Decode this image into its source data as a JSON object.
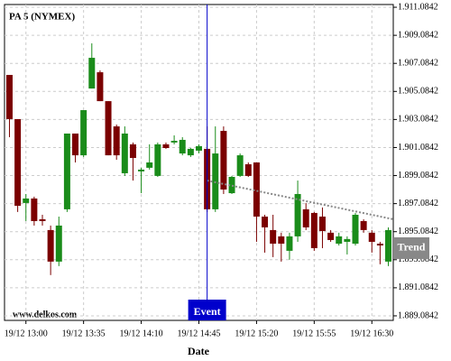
{
  "chart_data": {
    "type": "candlestick",
    "title": "PA 5 (NYMEX)",
    "x_label": "Date",
    "watermark": "www.delkos.com",
    "up_color": "#1a8c1a",
    "down_color": "#7b0000",
    "grid": true,
    "x": [
      "19/12 12:50",
      "19/12 12:55",
      "19/12 13:00",
      "19/12 13:05",
      "19/12 13:10",
      "19/12 13:15",
      "19/12 13:20",
      "19/12 13:25",
      "19/12 13:30",
      "19/12 13:35",
      "19/12 13:40",
      "19/12 13:45",
      "19/12 13:50",
      "19/12 13:55",
      "19/12 14:00",
      "19/12 14:05",
      "19/12 14:10",
      "19/12 14:15",
      "19/12 14:20",
      "19/12 14:25",
      "19/12 14:30",
      "19/12 14:35",
      "19/12 14:40",
      "19/12 14:45",
      "19/12 14:50",
      "19/12 14:55",
      "19/12 15:00",
      "19/12 15:05",
      "19/12 15:10",
      "19/12 15:15",
      "19/12 15:20",
      "19/12 15:25",
      "19/12 15:30",
      "19/12 15:35",
      "19/12 15:40",
      "19/12 15:45",
      "19/12 15:50",
      "19/12 15:55",
      "19/12 16:00",
      "19/12 16:05",
      "19/12 16:10",
      "19/12 16:15",
      "19/12 16:20",
      "19/12 16:25",
      "19/12 16:30",
      "19/12 16:35",
      "19/12 16:40"
    ],
    "open": [
      1906.26,
      1903.11,
      1897.13,
      1897.45,
      1895.97,
      1895.2,
      1892.95,
      1896.68,
      1902.08,
      1900.53,
      1905.29,
      1906.45,
      1904.39,
      1902.59,
      1899.25,
      1901.31,
      1899.38,
      1899.64,
      1899.06,
      1901.31,
      1901.44,
      1900.66,
      1900.53,
      1900.86,
      1900.99,
      1896.68,
      1902.27,
      1897.83,
      1899.06,
      1899.89,
      1900.02,
      1896.16,
      1895.2,
      1894.75,
      1893.72,
      1894.75,
      1896.68,
      1896.42,
      1896.16,
      1895.01,
      1894.23,
      1894.36,
      1894.23,
      1895.84,
      1895.01,
      1894.23,
      1892.95
    ],
    "close": [
      1903.11,
      1896.93,
      1897.45,
      1895.84,
      1895.84,
      1892.95,
      1895.52,
      1902.08,
      1900.53,
      1903.75,
      1907.48,
      1904.39,
      1900.53,
      1900.53,
      1902.08,
      1900.34,
      1899.51,
      1900.02,
      1901.31,
      1901.05,
      1901.56,
      1901.63,
      1900.99,
      1901.18,
      1896.68,
      1900.66,
      1898.09,
      1898.99,
      1900.53,
      1899.06,
      1896.16,
      1895.39,
      1894.23,
      1894.23,
      1894.75,
      1897.77,
      1895.39,
      1893.91,
      1895.13,
      1894.49,
      1894.75,
      1894.56,
      1896.29,
      1895.2,
      1894.36,
      1894.1,
      1895.2
    ],
    "high": [
      1906.26,
      1903.11,
      1897.77,
      1897.58,
      1896.29,
      1895.52,
      1896.16,
      1902.08,
      1902.08,
      1903.75,
      1908.51,
      1906.58,
      1904.39,
      1902.72,
      1902.59,
      1901.44,
      1899.64,
      1901.31,
      1901.44,
      1901.44,
      1901.95,
      1901.82,
      1901.05,
      1901.31,
      1902.59,
      1902.59,
      1902.59,
      1899.06,
      1900.66,
      1900.02,
      1900.02,
      1896.29,
      1896.29,
      1895.01,
      1895.01,
      1898.73,
      1897.13,
      1896.49,
      1896.81,
      1895.2,
      1895.01,
      1894.75,
      1896.42,
      1895.97,
      1895.2,
      1894.36,
      1895.39
    ],
    "low": [
      1901.82,
      1896.49,
      1895.84,
      1895.52,
      1895.52,
      1891.99,
      1892.63,
      1896.49,
      1900.02,
      1900.41,
      1905.29,
      1904.39,
      1900.53,
      1900.21,
      1899.06,
      1898.73,
      1897.83,
      1899.51,
      1898.99,
      1900.99,
      1901.31,
      1900.53,
      1900.41,
      1900.66,
      1896.49,
      1896.49,
      1897.77,
      1897.77,
      1898.99,
      1898.99,
      1894.36,
      1893.59,
      1893.27,
      1892.95,
      1893.08,
      1894.36,
      1895.2,
      1893.72,
      1893.91,
      1894.36,
      1894.1,
      1893.46,
      1894.1,
      1895.01,
      1893.59,
      1892.76,
      1892.63
    ],
    "xlim": [
      "19/12 12:47",
      "19/12 16:43"
    ],
    "xticks": [
      "19/12 13:00",
      "19/12 13:35",
      "19/12 14:10",
      "19/12 14:45",
      "19/12 15:20",
      "19/12 15:55",
      "19/12 16:30"
    ],
    "ylim": [
      1888.76,
      1911.28
    ],
    "yticks": [
      {
        "value": 1889.0842,
        "label": "1.889.0842"
      },
      {
        "value": 1891.0842,
        "label": "1.891.0842"
      },
      {
        "value": 1893.0842,
        "label": "1.893.0842"
      },
      {
        "value": 1895.0842,
        "label": "1.895.0842"
      },
      {
        "value": 1897.0842,
        "label": "1.897.0842"
      },
      {
        "value": 1899.0842,
        "label": "1.899.0842"
      },
      {
        "value": 1901.0842,
        "label": "1.901.0842"
      },
      {
        "value": 1903.0842,
        "label": "1.903.0842"
      },
      {
        "value": 1905.0842,
        "label": "1.905.0842"
      },
      {
        "value": 1907.0842,
        "label": "1.907.0842"
      },
      {
        "value": 1909.0842,
        "label": "1.909.0842"
      },
      {
        "value": 1911.0842,
        "label": "1.911.0842"
      }
    ],
    "event": {
      "label": "Event",
      "x": "19/12 14:50",
      "color": "#0000cc"
    },
    "trend": {
      "label": "Trend",
      "x": [
        "19/12 14:50",
        "19/12 16:43"
      ],
      "values": [
        1898.73,
        1895.97
      ],
      "color": "#888888"
    }
  }
}
